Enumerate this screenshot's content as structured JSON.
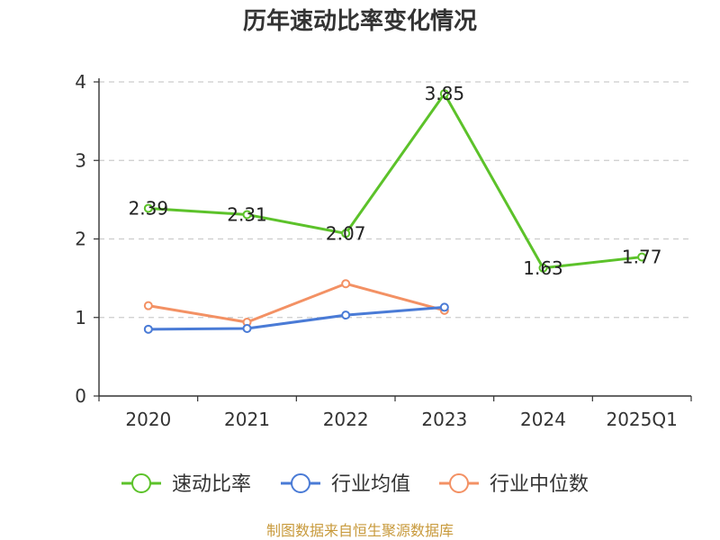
{
  "chart_data": {
    "type": "line",
    "title": "历年速动比率变化情况",
    "categories": [
      "2020",
      "2021",
      "2022",
      "2023",
      "2024",
      "2025Q1"
    ],
    "ylim": [
      0,
      4
    ],
    "yticks": [
      "0",
      "1",
      "2",
      "3",
      "4"
    ],
    "grid": true,
    "legend_position": "bottom",
    "series": [
      {
        "name": "速动比率",
        "color": "#5cc22a",
        "values": [
          2.39,
          2.31,
          2.07,
          3.85,
          1.63,
          1.77
        ],
        "labels": [
          "2.39",
          "2.31",
          "2.07",
          "3.85",
          "1.63",
          "1.77"
        ]
      },
      {
        "name": "行业均值",
        "color": "#4a7bd6",
        "values": [
          0.85,
          0.86,
          1.03,
          1.13,
          null,
          null
        ]
      },
      {
        "name": "行业中位数",
        "color": "#f39164",
        "values": [
          1.15,
          0.94,
          1.43,
          1.09,
          null,
          null
        ]
      }
    ]
  },
  "source_text": "制图数据来自恒生聚源数据库"
}
